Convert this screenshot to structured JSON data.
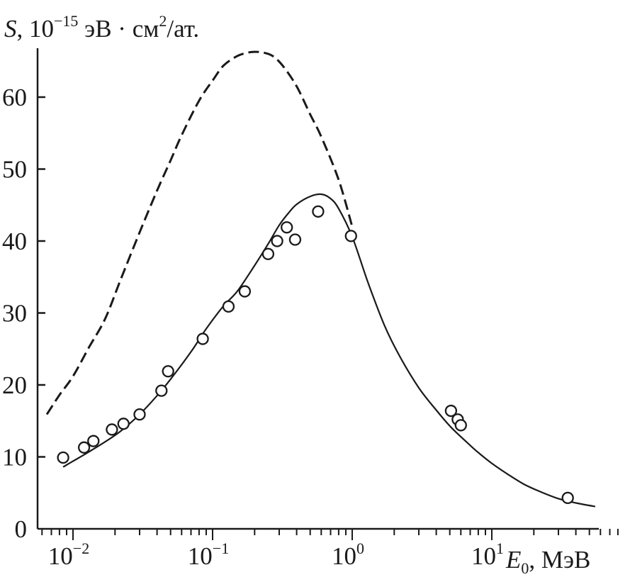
{
  "chart_data": {
    "type": "scatter",
    "ylabel": {
      "symbol": "S",
      "sep": ", ",
      "base": "10",
      "exp": "−15",
      "unit1": " эВ · см",
      "exp2": "2",
      "unit2": "/ат."
    },
    "xlabel": {
      "symbol": "E",
      "sub": "0",
      "unit": ", МэВ"
    },
    "x_scale": "log",
    "xlim": [
      0.0055,
      80
    ],
    "ylim": [
      0,
      67
    ],
    "x_ticks": [
      {
        "value": 0.01,
        "base": "10",
        "exp": "−2"
      },
      {
        "value": 0.1,
        "base": "10",
        "exp": "−1"
      },
      {
        "value": 1,
        "base": "10",
        "exp": "0"
      },
      {
        "value": 10,
        "base": "10",
        "exp": "1"
      }
    ],
    "y_ticks": [
      {
        "value": 0,
        "label": "0"
      },
      {
        "value": 10,
        "label": "10"
      },
      {
        "value": 20,
        "label": "20"
      },
      {
        "value": 30,
        "label": "30"
      },
      {
        "value": 40,
        "label": "40"
      },
      {
        "value": 50,
        "label": "50"
      },
      {
        "value": 60,
        "label": "60"
      }
    ],
    "grid": false,
    "series": [
      {
        "style": "solid",
        "x": [
          0.0085,
          0.01,
          0.013,
          0.017,
          0.022,
          0.03,
          0.04,
          0.05,
          0.07,
          0.09,
          0.12,
          0.15,
          0.2,
          0.25,
          0.3,
          0.35,
          0.4,
          0.5,
          0.6,
          0.7,
          0.8,
          1.0,
          1.3,
          1.7,
          2.2,
          3,
          4,
          5,
          6,
          7,
          8,
          10,
          13,
          17,
          22,
          30,
          40,
          55
        ],
        "y": [
          8.6,
          9.4,
          10.7,
          12.1,
          13.6,
          15.9,
          18.5,
          20.8,
          24.6,
          27.8,
          31.0,
          33.0,
          36.6,
          39.6,
          42.2,
          43.9,
          45.1,
          46.2,
          46.5,
          45.9,
          44.5,
          40.6,
          34.2,
          28.3,
          23.9,
          19.6,
          16.5,
          14.3,
          12.8,
          11.6,
          10.6,
          9.1,
          7.6,
          6.2,
          5.2,
          4.2,
          3.6,
          3.1
        ]
      },
      {
        "style": "dashed",
        "x": [
          0.0065,
          0.008,
          0.01,
          0.013,
          0.017,
          0.022,
          0.03,
          0.04,
          0.05,
          0.06,
          0.08,
          0.1,
          0.12,
          0.15,
          0.18,
          0.2,
          0.23,
          0.27,
          0.32,
          0.4,
          0.5,
          0.6,
          0.8,
          1.0
        ],
        "y": [
          15.9,
          18.6,
          21.2,
          25.2,
          29.2,
          34.7,
          41.2,
          47.0,
          51.2,
          54.7,
          59.5,
          62.3,
          64.4,
          65.7,
          66.2,
          66.3,
          66.2,
          65.7,
          64.3,
          61.5,
          57.6,
          54.5,
          48.5,
          42.0
        ]
      },
      {
        "style": "markers",
        "x": [
          0.0085,
          0.012,
          0.014,
          0.019,
          0.023,
          0.03,
          0.043,
          0.048,
          0.085,
          0.13,
          0.17,
          0.25,
          0.29,
          0.34,
          0.39,
          0.57,
          0.98,
          5.1,
          5.7,
          6.0,
          35
        ],
        "y": [
          9.9,
          11.3,
          12.2,
          13.8,
          14.6,
          15.9,
          19.2,
          21.9,
          26.4,
          30.9,
          33.0,
          38.2,
          40.0,
          41.9,
          40.2,
          44.1,
          40.7,
          16.4,
          15.2,
          14.4,
          4.3
        ]
      }
    ]
  }
}
